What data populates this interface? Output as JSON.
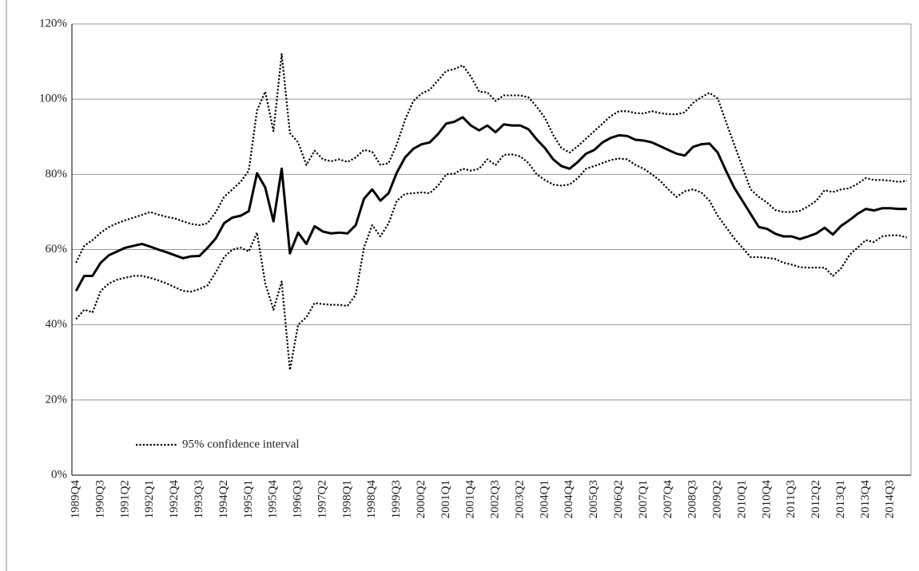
{
  "chart_data": {
    "type": "line",
    "categories": [
      "1989Q4",
      null,
      null,
      "1990Q3",
      null,
      null,
      "1991Q2",
      null,
      null,
      "1992Q1",
      null,
      null,
      "1992Q4",
      null,
      null,
      "1993Q3",
      null,
      null,
      "1994Q2",
      null,
      null,
      "1995Q1",
      null,
      null,
      "1995Q4",
      null,
      null,
      "1996Q3",
      null,
      null,
      "1997Q2",
      null,
      null,
      "1998Q1",
      null,
      null,
      "1998Q4",
      null,
      null,
      "1999Q3",
      null,
      null,
      "2000Q2",
      null,
      null,
      "2001Q1",
      null,
      null,
      "2001Q4",
      null,
      null,
      "2002Q3",
      null,
      null,
      "2003Q2",
      null,
      null,
      "2004Q1",
      null,
      null,
      "2004Q4",
      null,
      null,
      "2005Q3",
      null,
      null,
      "2006Q2",
      null,
      null,
      "2007Q1",
      null,
      null,
      "2007Q4",
      null,
      null,
      "2008Q3",
      null,
      null,
      "2009Q2",
      null,
      null,
      "2010Q1",
      null,
      null,
      "2010Q4",
      null,
      null,
      "2011Q3",
      null,
      null,
      "2012Q2",
      null,
      null,
      "2013Q1",
      null,
      null,
      "2013Q4",
      null,
      null,
      "2014Q3",
      null,
      null
    ],
    "series": [
      {
        "color": "#000000",
        "style": "solid",
        "values": [
          49,
          53,
          53,
          56.5,
          58.5,
          59.5,
          60.5,
          61,
          61.5,
          60.8,
          60,
          59.3,
          58.5,
          57.7,
          58.2,
          58.3,
          60.5,
          63,
          67,
          68.5,
          69,
          70.2,
          80.3,
          76.5,
          67.5,
          81.5,
          59,
          64.5,
          61.5,
          66.2,
          64.8,
          64.3,
          64.5,
          64.3,
          66.5,
          73.5,
          76,
          73,
          75,
          80.5,
          84.5,
          86.8,
          88,
          88.5,
          90.7,
          93.5,
          94,
          95.2,
          93,
          91.7,
          93,
          91.2,
          93.3,
          93,
          93,
          92,
          89.3,
          87,
          84,
          82.2,
          81.5,
          83.3,
          85.5,
          86.5,
          88.5,
          89.7,
          90.4,
          90.2,
          89.2,
          89,
          88.5,
          87.5,
          86.5,
          85.5,
          85,
          87.3,
          88,
          88.2,
          85.8,
          81,
          76.5,
          73,
          69.5,
          66,
          65.5,
          64.2,
          63.5,
          63.5,
          62.8,
          63.5,
          64.3,
          65.8,
          64,
          66.3,
          67.8,
          69.5,
          70.8,
          70.4,
          71,
          71,
          70.8,
          70.8
        ]
      },
      {
        "name": "95% confidence interval",
        "color": "#000000",
        "style": "dotted",
        "values": [
          56.5,
          61,
          62.5,
          64.5,
          66,
          67,
          67.8,
          68.5,
          69.2,
          70,
          69.3,
          68.7,
          68.3,
          67.5,
          66.8,
          66.5,
          67,
          70,
          74,
          76,
          78,
          81,
          97,
          102,
          91.5,
          112,
          91,
          88.5,
          82.5,
          86.3,
          84,
          83.5,
          84,
          83.3,
          84.5,
          86.5,
          86,
          82.5,
          83,
          88,
          94.5,
          99.5,
          101.5,
          102.5,
          105,
          107.5,
          108,
          109,
          106,
          102,
          101.8,
          99.5,
          101,
          101,
          101,
          100.5,
          98,
          95,
          90.5,
          87,
          85.8,
          87.5,
          89.5,
          91.5,
          93.5,
          95.5,
          96.8,
          96.8,
          96.3,
          96.2,
          96.8,
          96.3,
          96,
          96,
          96.5,
          99,
          100.5,
          101.7,
          100.2,
          94,
          88,
          82,
          76,
          74,
          72.5,
          70.5,
          70,
          70,
          70.3,
          71.5,
          73,
          75.8,
          75.3,
          76,
          76.3,
          77.5,
          79,
          78.5,
          78.5,
          78.3,
          78,
          78.3
        ]
      },
      {
        "color": "#000000",
        "style": "dotted",
        "values": [
          41.5,
          44,
          43.3,
          49,
          51,
          52,
          52.5,
          53,
          53,
          52.5,
          51.8,
          51,
          50,
          49,
          48.8,
          49.5,
          50.5,
          54,
          58,
          60,
          60.5,
          59.5,
          64.5,
          51,
          44,
          51.5,
          28,
          40,
          42,
          45.8,
          45.5,
          45.3,
          45.3,
          45,
          48,
          60.5,
          66.5,
          63.5,
          67,
          73,
          74.8,
          75,
          75.2,
          75,
          77,
          80,
          80.2,
          81.5,
          81,
          81.5,
          84,
          82.5,
          85.2,
          85.3,
          84.8,
          83,
          80,
          78.5,
          77.3,
          77,
          77.3,
          79,
          81.5,
          82.2,
          83,
          83.8,
          84.2,
          84,
          82.5,
          81.5,
          80,
          78.3,
          76,
          74,
          75.5,
          76,
          75.2,
          73,
          69,
          66,
          63,
          60.5,
          58,
          58,
          57.8,
          57.5,
          56.5,
          56,
          55.3,
          55.2,
          55.2,
          55.2,
          53,
          55,
          58.5,
          60.5,
          62.5,
          62,
          63.5,
          63.8,
          63.8,
          63.2
        ]
      }
    ],
    "ylim": [
      0,
      120
    ],
    "yticks": [
      {
        "value": 0,
        "label": "0%"
      },
      {
        "value": 20,
        "label": "20%"
      },
      {
        "value": 40,
        "label": "40%"
      },
      {
        "value": 60,
        "label": "60%"
      },
      {
        "value": 80,
        "label": "80%"
      },
      {
        "value": 100,
        "label": "100%"
      },
      {
        "value": 120,
        "label": "120%"
      }
    ],
    "grid": true,
    "legend": "lower-left"
  }
}
